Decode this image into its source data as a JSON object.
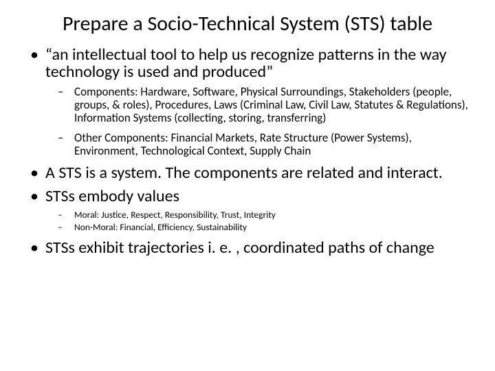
{
  "slide": {
    "background_color": "#ffffff",
    "text_color": "#000000",
    "font_family": "Calibri",
    "title": {
      "text": "Prepare a Socio-Technical System (STS) table",
      "fontsize": 30,
      "align": "center"
    },
    "bullets": [
      {
        "text": "“an intellectual tool to help us recognize patterns in the way technology is used and produced”",
        "fontsize": 24,
        "children": [
          {
            "text": "Components: Hardware, Software, Physical Surroundings, Stakeholders (people, groups, & roles), Procedures, Laws (Criminal Law, Civil Law, Statutes & Regulations), Information Systems (collecting, storing, transferring)",
            "fontsize": 17
          },
          {
            "text": "Other Components: Financial Markets, Rate Structure (Power Systems), Environment, Technological Context, Supply Chain",
            "fontsize": 17
          }
        ]
      },
      {
        "text": "A STS is a system.  The components are related and interact.",
        "fontsize": 24
      },
      {
        "text": "STSs embody values",
        "fontsize": 24,
        "children_small": true,
        "children": [
          {
            "text": "Moral: Justice, Respect, Responsibility, Trust, Integrity",
            "fontsize": 13.5
          },
          {
            "text": "Non-Moral: Financial, Efficiency, Sustainability",
            "fontsize": 13.5
          }
        ]
      },
      {
        "text": "STSs exhibit trajectories i. e. , coordinated paths of change",
        "fontsize": 24
      }
    ]
  }
}
